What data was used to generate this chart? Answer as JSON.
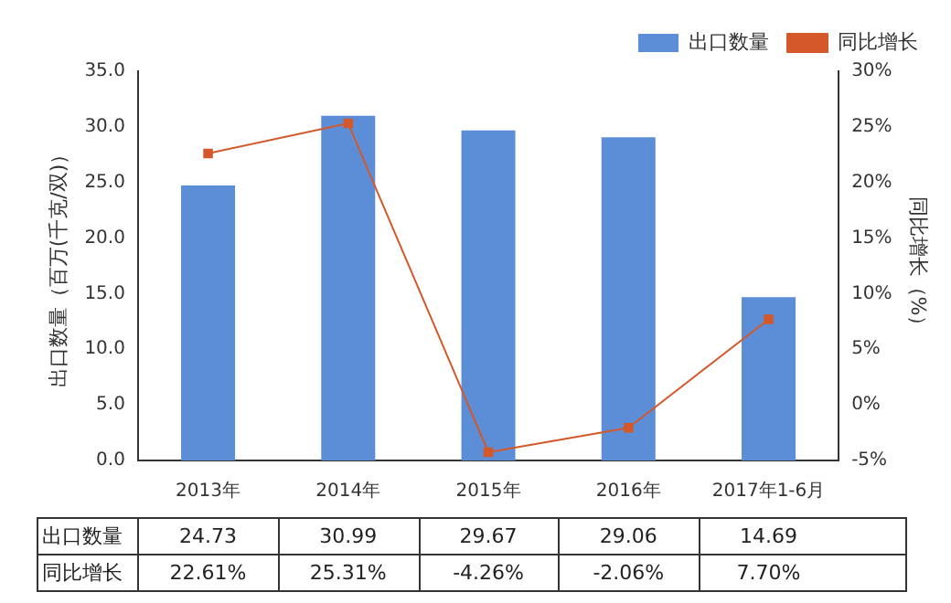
{
  "chart_data": {
    "type": "bar",
    "ylabel": "出口数量（百万(千克/双)）",
    "y2label": "同比增长（%）",
    "categories": [
      "2013年",
      "2014年",
      "2015年",
      "2016年",
      "2017年1-6月"
    ],
    "series": [
      {
        "name": "出口数量",
        "color": "#5b8ed6",
        "values": [
          24.73,
          30.99,
          29.67,
          29.06,
          14.69
        ],
        "value_labels": [
          "24.73",
          "30.99",
          "29.67",
          "29.06",
          "14.69"
        ]
      },
      {
        "name": "同比增长",
        "type": "line",
        "axis": "y2",
        "color": "#d4582a",
        "marker": "square",
        "values": [
          22.61,
          25.31,
          -4.26,
          -2.06,
          7.7
        ],
        "value_labels": [
          "22.61%",
          "25.31%",
          "-4.26%",
          "-2.06%",
          "7.70%"
        ]
      }
    ],
    "ylim": [
      0,
      35
    ],
    "yticks": [
      {
        "value": 0,
        "label": "0.0"
      },
      {
        "value": 5,
        "label": "5.0"
      },
      {
        "value": 10,
        "label": "10.0"
      },
      {
        "value": 15,
        "label": "15.0"
      },
      {
        "value": 20,
        "label": "20.0"
      },
      {
        "value": 25,
        "label": "25.0"
      },
      {
        "value": 30,
        "label": "30.0"
      },
      {
        "value": 35,
        "label": "35.0"
      }
    ],
    "y2lim": [
      -5,
      30
    ],
    "y2ticks": [
      {
        "value": -5,
        "label": "-5%"
      },
      {
        "value": 0,
        "label": "0%"
      },
      {
        "value": 5,
        "label": "5%"
      },
      {
        "value": 10,
        "label": "10%"
      },
      {
        "value": 15,
        "label": "15%"
      },
      {
        "value": 20,
        "label": "20%"
      },
      {
        "value": 25,
        "label": "25%"
      },
      {
        "value": 30,
        "label": "30%"
      }
    ],
    "legend": "top right"
  }
}
